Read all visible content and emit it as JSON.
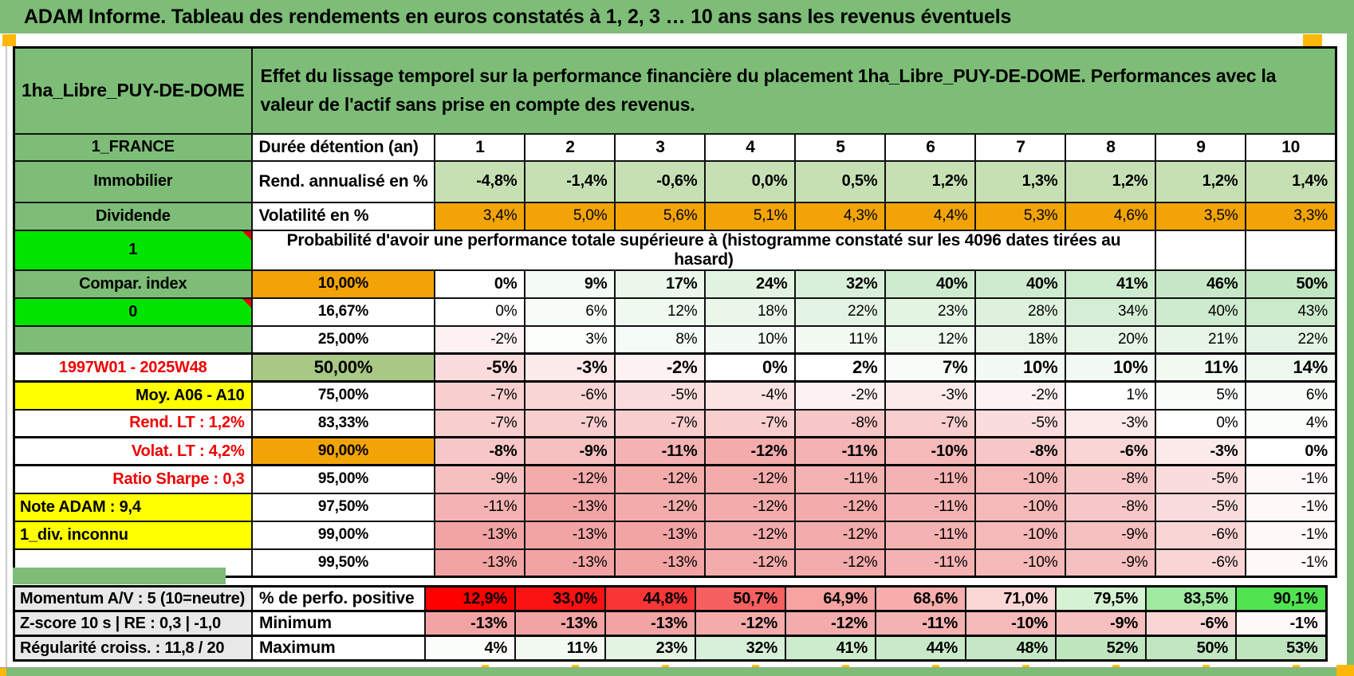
{
  "page": {
    "title": "ADAM Informe. Tableau des rendements en euros constatés à 1, 2, 3 … 10 ans sans les revenus éventuels"
  },
  "colors": {
    "header_green": "#7DBD77",
    "bright_green": "#00E400",
    "orange": "#F2A407",
    "sage_green": "#A9C886",
    "yellow": "#FFFF00",
    "red_text": "#EE0000",
    "rend_row_green": "#C6E0B4",
    "gray_label": "#E9E8E8",
    "marker_orange": "#FFB70A"
  },
  "table": {
    "asset_name": "1ha_Libre_PUY-DE-DOME",
    "description": "Effet du lissage temporel sur la performance financière du placement 1ha_Libre_PUY-DE-DOME. Performances avec la valeur de l'actif sans prise en compte des revenus.",
    "labels": {
      "duration": "Durée détention (an)",
      "rend": "Rend. annualisé en %",
      "vol": "Volatilité en %"
    },
    "sidebar": {
      "country": "1_FRANCE",
      "asset_type": "Immobilier",
      "dividend": "Dividende",
      "flag_one": "1",
      "compar": "Compar. index",
      "flag_zero": "0",
      "period": "1997W01 - 2025W48",
      "moy": "Moy. A06 - A10",
      "rend_lt": "Rend. LT :   1,2%",
      "volat_lt": "Volat. LT :   4,2%",
      "sharpe": "Ratio Sharpe :   0,3",
      "note_adam": "Note ADAM : 9,4",
      "div_inconnu": "1_div. inconnu"
    },
    "years": [
      "1",
      "2",
      "3",
      "4",
      "5",
      "6",
      "7",
      "8",
      "9",
      "10"
    ],
    "rend_values": [
      "-4,8%",
      "-1,4%",
      "-0,6%",
      "0,0%",
      "0,5%",
      "1,2%",
      "1,3%",
      "1,2%",
      "1,2%",
      "1,4%"
    ],
    "vol_values": [
      "3,4%",
      "5,0%",
      "5,6%",
      "5,1%",
      "4,3%",
      "4,4%",
      "5,3%",
      "4,6%",
      "3,5%",
      "3,3%"
    ],
    "probability_header": "Probabilité d'avoir une performance totale supérieure à (histogramme constaté sur les 4096 dates tirées au hasard)",
    "matrix": [
      {
        "side": "compar",
        "side_cls": "bg-green",
        "threshold": "10,00%",
        "t_style": "orange",
        "em": true,
        "values": [
          0,
          9,
          17,
          24,
          32,
          40,
          40,
          41,
          46,
          50
        ]
      },
      {
        "side": "flag_zero",
        "side_cls": "bg-bright note",
        "threshold": "16,67%",
        "values": [
          0,
          6,
          12,
          18,
          22,
          23,
          28,
          34,
          40,
          43
        ]
      },
      {
        "side": null,
        "side_cls": "bg-green",
        "threshold": "25,00%",
        "values": [
          -2,
          3,
          8,
          10,
          11,
          12,
          18,
          20,
          21,
          22
        ]
      },
      {
        "side": "period",
        "side_cls": "red t-center",
        "threshold": "50,00%",
        "t_style": "sage",
        "em": true,
        "big": true,
        "heavy": true,
        "values": [
          -5,
          -3,
          -2,
          0,
          2,
          7,
          10,
          10,
          11,
          14
        ]
      },
      {
        "side": "moy",
        "side_cls": "bg-yellow t-right",
        "threshold": "75,00%",
        "values": [
          -7,
          -6,
          -5,
          -4,
          -2,
          -3,
          -2,
          1,
          5,
          6
        ]
      },
      {
        "side": "rend_lt",
        "side_cls": "red t-right",
        "threshold": "83,33%",
        "values": [
          -7,
          -7,
          -7,
          -7,
          -8,
          -7,
          -5,
          -3,
          0,
          4
        ]
      },
      {
        "side": "volat_lt",
        "side_cls": "red t-right",
        "threshold": "90,00%",
        "t_style": "orange",
        "em": true,
        "heavy": true,
        "values": [
          -8,
          -9,
          -11,
          -12,
          -11,
          -10,
          -8,
          -6,
          -3,
          0
        ]
      },
      {
        "side": "sharpe",
        "side_cls": "red t-right",
        "threshold": "95,00%",
        "values": [
          -9,
          -12,
          -12,
          -12,
          -11,
          -11,
          -10,
          -8,
          -5,
          -1
        ]
      },
      {
        "side": "note_adam",
        "side_cls": "bg-yellow t-left",
        "threshold": "97,50%",
        "values": [
          -11,
          -13,
          -12,
          -12,
          -12,
          -11,
          -10,
          -8,
          -5,
          -1
        ]
      },
      {
        "side": "div_inconnu",
        "side_cls": "bg-yellow t-left",
        "threshold": "99,00%",
        "values": [
          -13,
          -13,
          -13,
          -12,
          -12,
          -11,
          -10,
          -9,
          -6,
          -1
        ]
      },
      {
        "side": null,
        "side_cls": "",
        "threshold": "99,50%",
        "values": [
          -13,
          -13,
          -13,
          -12,
          -12,
          -11,
          -10,
          -9,
          -6,
          -1
        ]
      }
    ],
    "bottom": {
      "left_labels": [
        "Momentum A/V : 5 (10=neutre)",
        "Z-score 10 s | RE : 0,3 | -1,0",
        "Régularité croiss. : 11,8 / 20"
      ],
      "rows": [
        {
          "label": "% de perfo. positive",
          "values": [
            "12,9%",
            "33,0%",
            "44,8%",
            "50,7%",
            "64,9%",
            "68,6%",
            "71,0%",
            "79,5%",
            "83,5%",
            "90,1%"
          ],
          "bg": [
            "#FE0000",
            "#FB1212",
            "#F83636",
            "#F66060",
            "#F7A3A1",
            "#F7AEAC",
            "#FBD8D6",
            "#D5F3D3",
            "#A0E9A0",
            "#50E350"
          ]
        },
        {
          "label": "Minimum",
          "values": [
            -13,
            -13,
            -13,
            -12,
            -12,
            -11,
            -10,
            -9,
            -6,
            -1
          ]
        },
        {
          "label": "Maximum",
          "values": [
            4,
            11,
            23,
            32,
            41,
            44,
            48,
            52,
            50,
            53
          ]
        }
      ]
    }
  }
}
